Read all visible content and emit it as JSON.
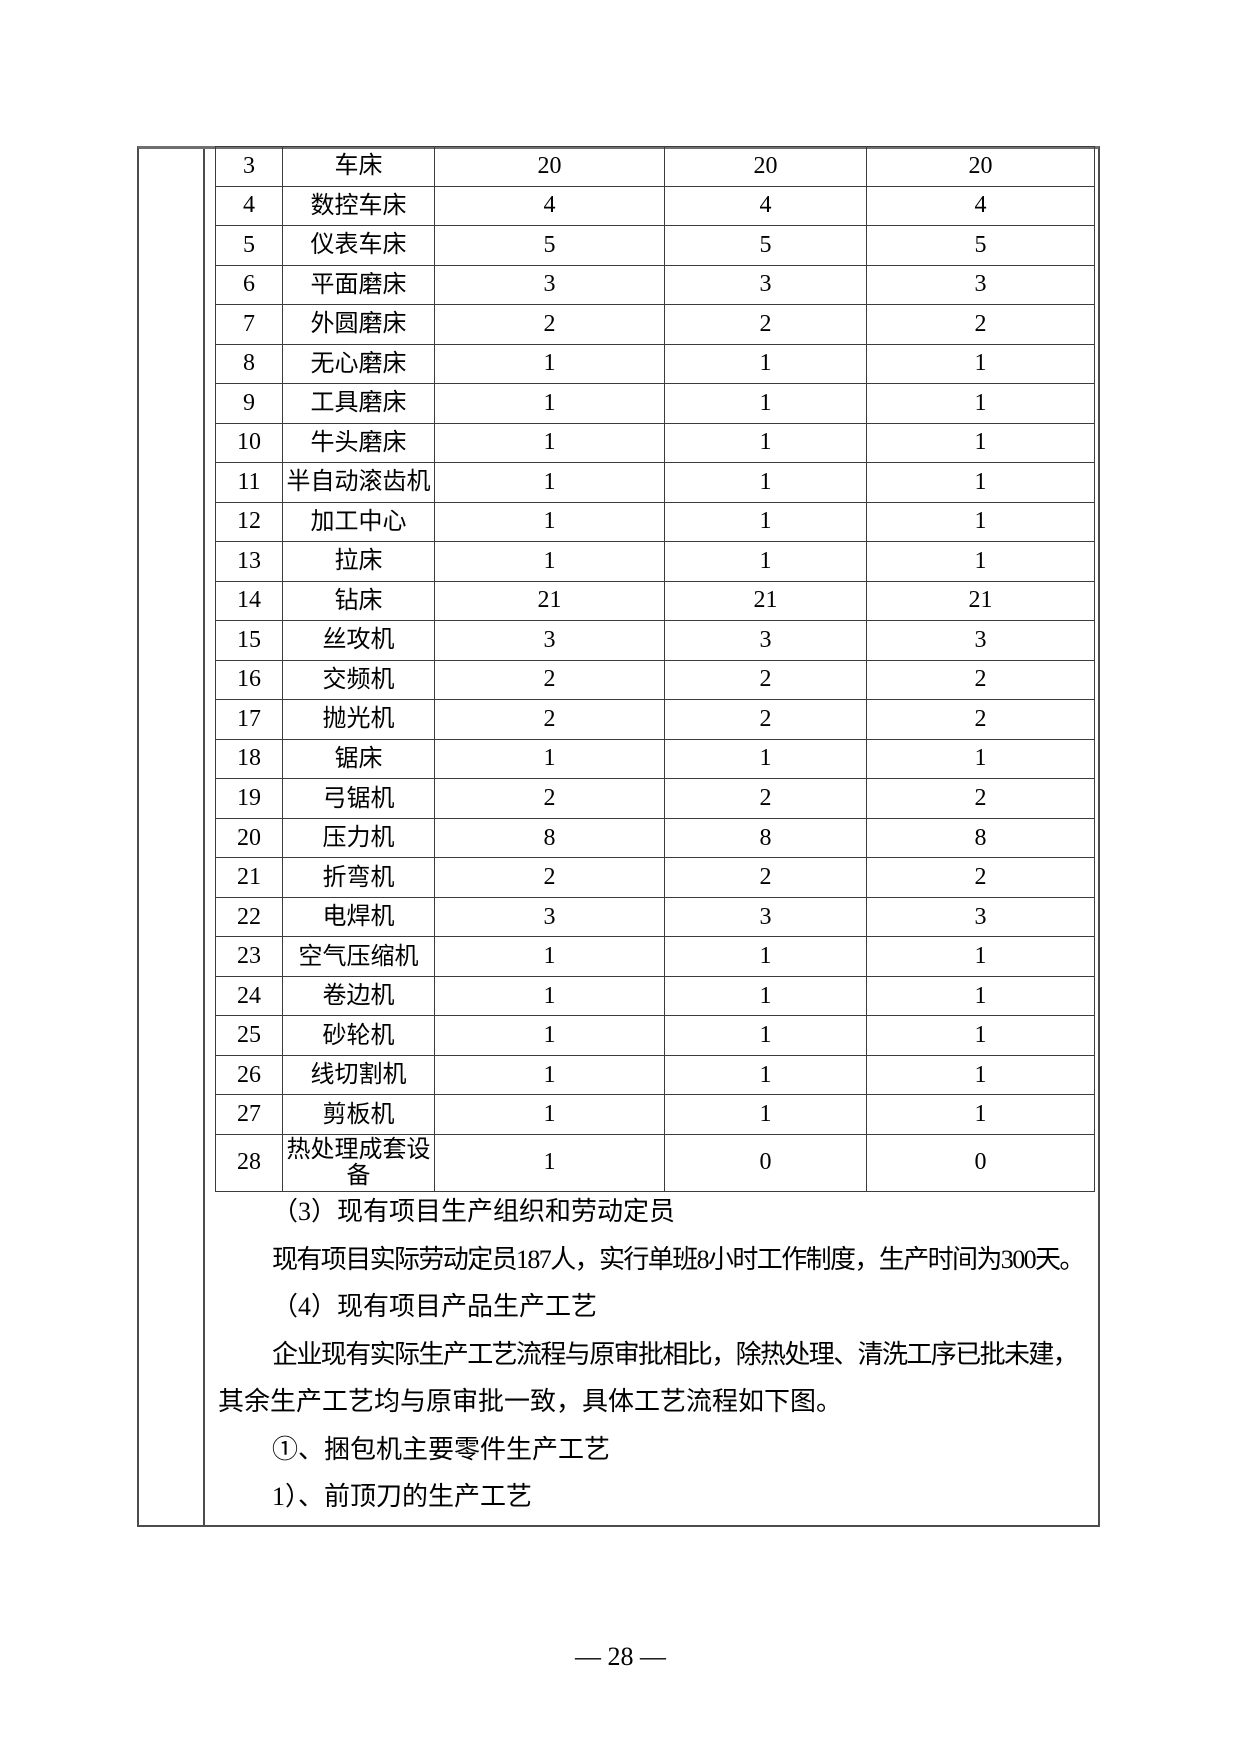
{
  "page": {
    "page_number": "— 28 —"
  },
  "table": {
    "rows": [
      [
        "3",
        "车床",
        "20",
        "20",
        "20"
      ],
      [
        "4",
        "数控车床",
        "4",
        "4",
        "4"
      ],
      [
        "5",
        "仪表车床",
        "5",
        "5",
        "5"
      ],
      [
        "6",
        "平面磨床",
        "3",
        "3",
        "3"
      ],
      [
        "7",
        "外圆磨床",
        "2",
        "2",
        "2"
      ],
      [
        "8",
        "无心磨床",
        "1",
        "1",
        "1"
      ],
      [
        "9",
        "工具磨床",
        "1",
        "1",
        "1"
      ],
      [
        "10",
        "牛头磨床",
        "1",
        "1",
        "1"
      ],
      [
        "11",
        "半自动滚齿机",
        "1",
        "1",
        "1"
      ],
      [
        "12",
        "加工中心",
        "1",
        "1",
        "1"
      ],
      [
        "13",
        "拉床",
        "1",
        "1",
        "1"
      ],
      [
        "14",
        "钻床",
        "21",
        "21",
        "21"
      ],
      [
        "15",
        "丝攻机",
        "3",
        "3",
        "3"
      ],
      [
        "16",
        "交频机",
        "2",
        "2",
        "2"
      ],
      [
        "17",
        "抛光机",
        "2",
        "2",
        "2"
      ],
      [
        "18",
        "锯床",
        "1",
        "1",
        "1"
      ],
      [
        "19",
        "弓锯机",
        "2",
        "2",
        "2"
      ],
      [
        "20",
        "压力机",
        "8",
        "8",
        "8"
      ],
      [
        "21",
        "折弯机",
        "2",
        "2",
        "2"
      ],
      [
        "22",
        "电焊机",
        "3",
        "3",
        "3"
      ],
      [
        "23",
        "空气压缩机",
        "1",
        "1",
        "1"
      ],
      [
        "24",
        "卷边机",
        "1",
        "1",
        "1"
      ],
      [
        "25",
        "砂轮机",
        "1",
        "1",
        "1"
      ],
      [
        "26",
        "线切割机",
        "1",
        "1",
        "1"
      ],
      [
        "27",
        "剪板机",
        "1",
        "1",
        "1"
      ],
      [
        "28",
        "热处理成套设备",
        "1",
        "0",
        "0"
      ]
    ]
  },
  "paragraphs": [
    {
      "text": "（3）现有项目生产组织和劳动定员",
      "indented": true
    },
    {
      "text": "现有项目实际劳动定员187人，实行单班8小时工作制度，生产时间为300天。",
      "indented": true
    },
    {
      "text": "（4）现有项目产品生产工艺",
      "indented": true
    },
    {
      "text": "企业现有实际生产工艺流程与原审批相比，除热处理、清洗工序已批未建，",
      "indented": true
    },
    {
      "text": "其余生产工艺均与原审批一致，具体工艺流程如下图。",
      "indented": false
    },
    {
      "text": "①、捆包机主要零件生产工艺",
      "indented": true
    },
    {
      "text": "1）、前顶刀的生产工艺",
      "indented": true
    }
  ]
}
